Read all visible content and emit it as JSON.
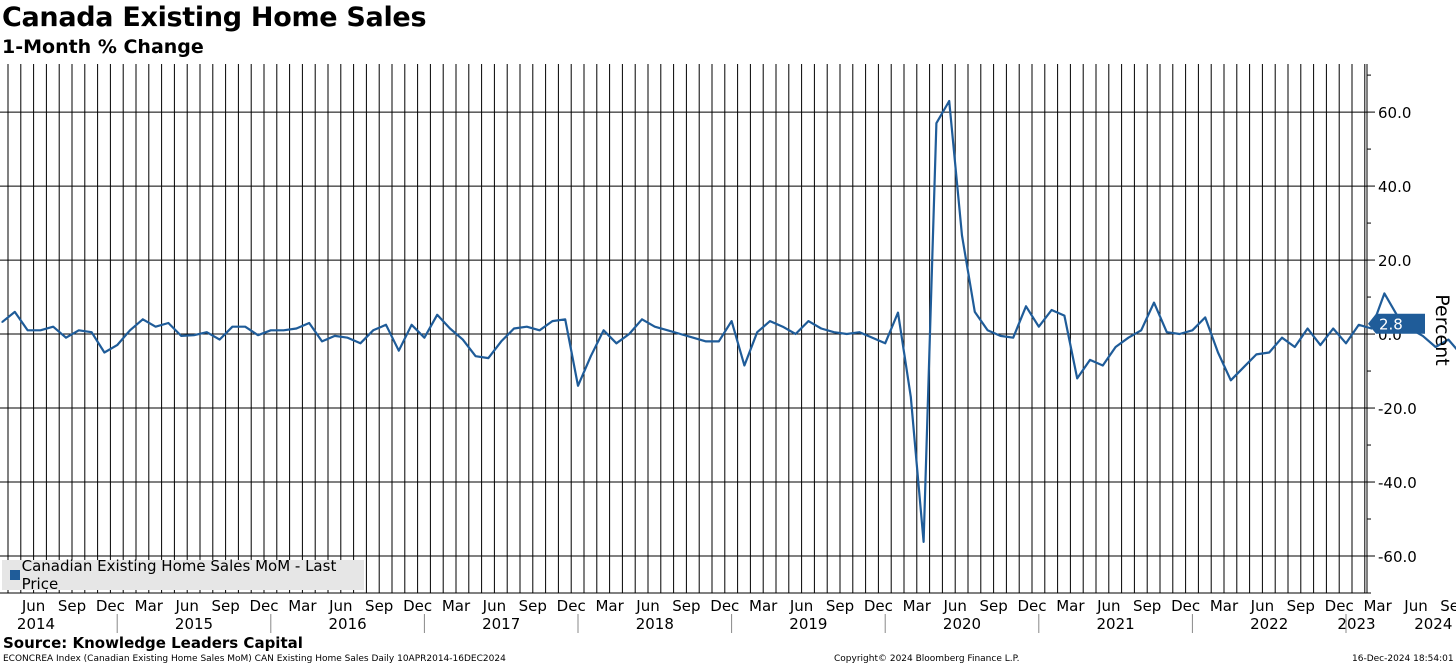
{
  "header": {
    "title": "Canada Existing Home Sales",
    "subtitle": "1-Month % Change"
  },
  "legend": {
    "label": "Canadian Existing Home Sales MoM - Last Price"
  },
  "footer": {
    "source": "Source: Knowledge Leaders Capital",
    "index_info": "ECONCREA Index (Canadian Existing Home Sales MoM) CAN Existing Home Sales  Daily 10APR2014-16DEC2024",
    "copyright": "Copyright© 2024 Bloomberg Finance L.P.",
    "timestamp": "16-Dec-2024 18:54:01"
  },
  "colors": {
    "series": "#1f5c99",
    "tag": "#1f5c99"
  },
  "chart_data": {
    "type": "line",
    "ylabel": "Percent",
    "ylim": [
      -70,
      73
    ],
    "yticks": [
      60,
      40,
      20,
      0,
      -20,
      -40,
      -60
    ],
    "ytick_labels": [
      "60.0",
      "40.0",
      "20.0",
      "0.0",
      "-20.0",
      "-40.0",
      "-60.0"
    ],
    "grid": true,
    "legend_position": "bottom-left",
    "x_start": "2014-04",
    "month_labels": [
      "Jun",
      "Sep",
      "Dec",
      "Mar",
      "Jun",
      "Sep",
      "Dec",
      "Mar",
      "Jun",
      "Sep",
      "Dec",
      "Mar",
      "Jun",
      "Sep",
      "Dec",
      "Mar",
      "Jun",
      "Sep",
      "Dec",
      "Mar",
      "Jun",
      "Sep",
      "Dec",
      "Mar",
      "Jun",
      "Sep",
      "Dec",
      "Mar",
      "Jun",
      "Sep",
      "Dec",
      "Mar",
      "Jun",
      "Sep",
      "Dec",
      "Mar",
      "Jun",
      "Sep",
      "Dec",
      "Mar",
      "Jun",
      "Sep"
    ],
    "year_labels": [
      "2014",
      "2015",
      "2016",
      "2017",
      "2018",
      "2019",
      "2020",
      "2021",
      "2022",
      "2023",
      "2024"
    ],
    "last_value_label": "2.8",
    "series": [
      {
        "name": "Canadian Existing Home Sales MoM - Last Price",
        "x": [
          "2014-04",
          "2014-05",
          "2014-06",
          "2014-07",
          "2014-08",
          "2014-09",
          "2014-10",
          "2014-11",
          "2014-12",
          "2015-01",
          "2015-02",
          "2015-03",
          "2015-04",
          "2015-05",
          "2015-06",
          "2015-07",
          "2015-08",
          "2015-09",
          "2015-10",
          "2015-11",
          "2015-12",
          "2016-01",
          "2016-02",
          "2016-03",
          "2016-04",
          "2016-05",
          "2016-06",
          "2016-07",
          "2016-08",
          "2016-09",
          "2016-10",
          "2016-11",
          "2016-12",
          "2017-01",
          "2017-02",
          "2017-03",
          "2017-04",
          "2017-05",
          "2017-06",
          "2017-07",
          "2017-08",
          "2017-09",
          "2017-10",
          "2017-11",
          "2017-12",
          "2018-01",
          "2018-02",
          "2018-03",
          "2018-04",
          "2018-05",
          "2018-06",
          "2018-07",
          "2018-08",
          "2018-09",
          "2018-10",
          "2018-11",
          "2018-12",
          "2019-01",
          "2019-02",
          "2019-03",
          "2019-04",
          "2019-05",
          "2019-06",
          "2019-07",
          "2019-08",
          "2019-09",
          "2019-10",
          "2019-11",
          "2019-12",
          "2020-01",
          "2020-02",
          "2020-03",
          "2020-04",
          "2020-05",
          "2020-06",
          "2020-07",
          "2020-08",
          "2020-09",
          "2020-10",
          "2020-11",
          "2020-12",
          "2021-01",
          "2021-02",
          "2021-03",
          "2021-04",
          "2021-05",
          "2021-06",
          "2021-07",
          "2021-08",
          "2021-09",
          "2021-10",
          "2021-11",
          "2021-12",
          "2022-01",
          "2022-02",
          "2022-03",
          "2022-04",
          "2022-05",
          "2022-06",
          "2022-07",
          "2022-08",
          "2022-09",
          "2022-10",
          "2022-11",
          "2022-12",
          "2023-01",
          "2023-02",
          "2023-03",
          "2023-04",
          "2023-05",
          "2023-06",
          "2023-07",
          "2023-08",
          "2023-09",
          "2023-10",
          "2023-11",
          "2023-12",
          "2024-01",
          "2024-02",
          "2024-03",
          "2024-04",
          "2024-05",
          "2024-06",
          "2024-07",
          "2024-08",
          "2024-09",
          "2024-10",
          "2024-11"
        ],
        "values": [
          3.2,
          6.0,
          1.0,
          1.0,
          2.0,
          -1.0,
          1.0,
          0.5,
          -5.0,
          -3.0,
          1.0,
          4.0,
          2.0,
          3.0,
          -0.5,
          -0.3,
          0.5,
          -1.5,
          2.0,
          2.0,
          -0.3,
          1.0,
          1.0,
          1.5,
          3.0,
          -2.0,
          -0.5,
          -1.0,
          -2.5,
          1.0,
          2.5,
          -4.5,
          2.5,
          -1.0,
          5.2,
          1.5,
          -1.5,
          -6.0,
          -6.5,
          -2.0,
          1.5,
          2.0,
          1.0,
          3.5,
          4.0,
          -14.0,
          -6.0,
          1.0,
          -2.5,
          0.0,
          4.0,
          2.0,
          1.0,
          0.0,
          -1.0,
          -2.0,
          -2.0,
          3.5,
          -8.5,
          0.5,
          3.5,
          2.0,
          0.0,
          3.5,
          1.5,
          0.5,
          0.0,
          0.5,
          -1.0,
          -2.5,
          5.8,
          -17.0,
          -56.2,
          57.0,
          63.0,
          26.6,
          6.0,
          1.0,
          -0.5,
          -1.0,
          7.5,
          2.0,
          6.5,
          5.0,
          -12.0,
          -7.0,
          -8.5,
          -3.5,
          -1.0,
          1.0,
          8.5,
          0.5,
          0.0,
          1.0,
          4.5,
          -5.0,
          -12.5,
          -9.0,
          -5.5,
          -5.0,
          -1.0,
          -3.5,
          1.5,
          -3.0,
          1.5,
          -2.5,
          2.5,
          1.5,
          11.0,
          5.0,
          1.5,
          -0.5,
          -3.5,
          -1.5,
          -5.5,
          -0.5,
          9.0,
          4.0,
          -2.5,
          0.5,
          -1.5,
          -0.5,
          3.5,
          -0.5,
          1.5,
          2.0,
          7.5,
          2.8
        ]
      }
    ]
  }
}
